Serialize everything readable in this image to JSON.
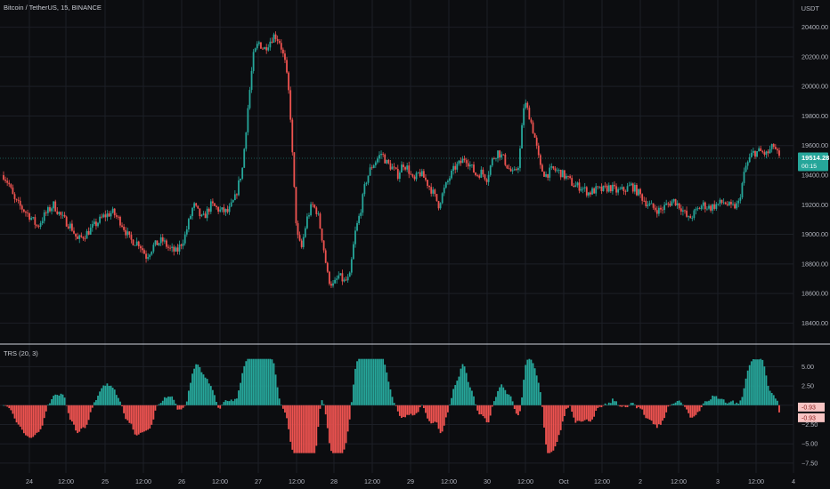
{
  "header": {
    "symbol": "Bitcoin / TetherUS",
    "interval": "15",
    "exchange": "BINANCE",
    "currency": "USDT"
  },
  "indicator": {
    "name": "TRS",
    "params": "(20, 3)"
  },
  "price_badge": {
    "value": "19514.28",
    "countdown": "00:15",
    "color": "#26a69a"
  },
  "indicator_badges": [
    "-0.93",
    "-0.93"
  ],
  "colors": {
    "up": "#26a69a",
    "down": "#ef5350",
    "background": "#0c0d10",
    "grid": "#1c1f26",
    "divider": "#d1d4dc"
  },
  "chart_data": [
    {
      "type": "candlestick",
      "ylim": [
        18300,
        20500
      ],
      "y_ticks": [
        18400,
        18600,
        18800,
        19000,
        19200,
        19400,
        19600,
        19800,
        20000,
        20200,
        20400
      ],
      "y_tick_labels": [
        "18400.00",
        "18600.00",
        "18800.00",
        "19000.00",
        "19200.00",
        "19400.00",
        "19600.00",
        "19800.00",
        "20000.00",
        "20200.00",
        "20400.00"
      ],
      "x_tick_labels": [
        "24",
        "12:00",
        "25",
        "12:00",
        "26",
        "12:00",
        "27",
        "12:00",
        "28",
        "12:00",
        "29",
        "12:00",
        "30",
        "12:00",
        "Oct",
        "12:00",
        "2",
        "12:00",
        "3",
        "12:00",
        "4"
      ],
      "close_path": [
        [
          0,
          19400
        ],
        [
          0.6,
          19340
        ],
        [
          1.2,
          19230
        ],
        [
          2.0,
          19180
        ],
        [
          3.0,
          19120
        ],
        [
          3.8,
          19050
        ],
        [
          4.6,
          19130
        ],
        [
          5.6,
          19200
        ],
        [
          6.6,
          19110
        ],
        [
          7.6,
          19050
        ],
        [
          8.3,
          18960
        ],
        [
          9.2,
          19000
        ],
        [
          10.2,
          19060
        ],
        [
          11.2,
          19120
        ],
        [
          12.2,
          19150
        ],
        [
          13.2,
          19080
        ],
        [
          14.2,
          18960
        ],
        [
          15.2,
          18940
        ],
        [
          16.0,
          18850
        ],
        [
          16.8,
          18920
        ],
        [
          17.8,
          18960
        ],
        [
          18.6,
          18900
        ],
        [
          19.4,
          18880
        ],
        [
          20.3,
          18980
        ],
        [
          21.3,
          19200
        ],
        [
          22.3,
          19100
        ],
        [
          23.3,
          19200
        ],
        [
          24.3,
          19160
        ],
        [
          25.2,
          19150
        ],
        [
          26.0,
          19250
        ],
        [
          26.8,
          19450
        ],
        [
          27.4,
          19850
        ],
        [
          28.0,
          20200
        ],
        [
          28.6,
          20300
        ],
        [
          29.2,
          20250
        ],
        [
          29.8,
          20300
        ],
        [
          30.4,
          20350
        ],
        [
          31.0,
          20300
        ],
        [
          31.6,
          20150
        ],
        [
          32.1,
          19900
        ],
        [
          32.5,
          19400
        ],
        [
          32.9,
          19000
        ],
        [
          33.4,
          18900
        ],
        [
          34.0,
          19100
        ],
        [
          34.6,
          19200
        ],
        [
          35.2,
          19150
        ],
        [
          35.8,
          18950
        ],
        [
          36.4,
          18700
        ],
        [
          37.0,
          18650
        ],
        [
          37.6,
          18720
        ],
        [
          38.2,
          18680
        ],
        [
          38.8,
          18700
        ],
        [
          39.4,
          19000
        ],
        [
          40.0,
          19150
        ],
        [
          40.6,
          19350
        ],
        [
          41.2,
          19450
        ],
        [
          41.8,
          19500
        ],
        [
          42.4,
          19550
        ],
        [
          43.0,
          19480
        ],
        [
          43.6,
          19450
        ],
        [
          44.2,
          19400
        ],
        [
          44.8,
          19480
        ],
        [
          45.4,
          19440
        ],
        [
          46.0,
          19350
        ],
        [
          46.6,
          19420
        ],
        [
          47.2,
          19380
        ],
        [
          48.0,
          19300
        ],
        [
          48.8,
          19200
        ],
        [
          49.4,
          19300
        ],
        [
          50.0,
          19380
        ],
        [
          50.6,
          19450
        ],
        [
          51.2,
          19480
        ],
        [
          51.8,
          19520
        ],
        [
          52.4,
          19460
        ],
        [
          53.0,
          19400
        ],
        [
          53.6,
          19420
        ],
        [
          54.2,
          19380
        ],
        [
          54.8,
          19500
        ],
        [
          55.4,
          19560
        ],
        [
          56.0,
          19520
        ],
        [
          56.6,
          19450
        ],
        [
          57.2,
          19400
        ],
        [
          57.8,
          19480
        ],
        [
          58.4,
          19900
        ],
        [
          59.0,
          19800
        ],
        [
          59.6,
          19650
        ],
        [
          60.2,
          19450
        ],
        [
          60.8,
          19400
        ],
        [
          61.6,
          19440
        ],
        [
          62.4,
          19420
        ],
        [
          63.2,
          19380
        ],
        [
          64.0,
          19330
        ],
        [
          64.8,
          19320
        ],
        [
          65.6,
          19280
        ],
        [
          66.4,
          19300
        ],
        [
          67.2,
          19300
        ],
        [
          68.0,
          19320
        ],
        [
          68.8,
          19290
        ],
        [
          69.6,
          19300
        ],
        [
          70.4,
          19330
        ],
        [
          71.2,
          19280
        ],
        [
          72.0,
          19220
        ],
        [
          72.8,
          19180
        ],
        [
          73.6,
          19160
        ],
        [
          74.4,
          19200
        ],
        [
          75.2,
          19230
        ],
        [
          76.0,
          19180
        ],
        [
          76.8,
          19100
        ],
        [
          77.6,
          19150
        ],
        [
          78.4,
          19200
        ],
        [
          79.2,
          19180
        ],
        [
          80.0,
          19200
        ],
        [
          80.8,
          19220
        ],
        [
          81.6,
          19180
        ],
        [
          82.4,
          19200
        ],
        [
          83.2,
          19450
        ],
        [
          84.0,
          19550
        ],
        [
          84.8,
          19560
        ],
        [
          85.6,
          19540
        ],
        [
          86.4,
          19600
        ],
        [
          87.0,
          19514
        ]
      ]
    },
    {
      "type": "bar",
      "name": "TRS",
      "ylim": [
        -8.2,
        7.0
      ],
      "y_ticks": [
        -7.5,
        -5.0,
        -2.5,
        0,
        2.5,
        5.0
      ],
      "y_tick_labels": [
        "−7.50",
        "−5.00",
        "−2.50",
        "0",
        "2.50",
        "5.00"
      ],
      "last_value": -0.93
    }
  ]
}
